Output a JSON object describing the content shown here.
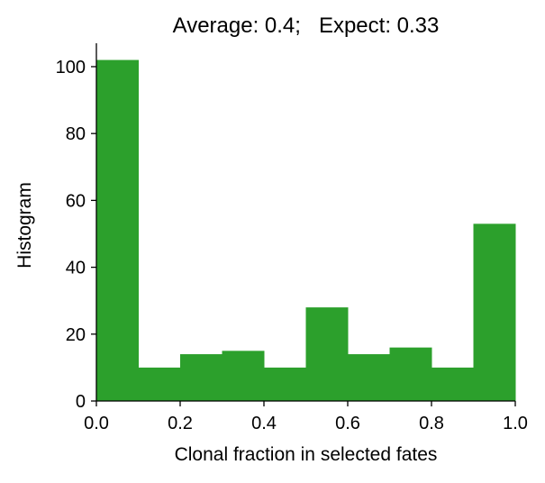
{
  "chart_data": {
    "type": "bar",
    "title": "Average: 0.4;   Expect: 0.33",
    "xlabel": "Clonal fraction in selected fates",
    "ylabel": "Histogram",
    "bin_edges": [
      0.0,
      0.1,
      0.2,
      0.3,
      0.4,
      0.5,
      0.6,
      0.7,
      0.8,
      0.9,
      1.0
    ],
    "values": [
      102,
      10,
      14,
      15,
      10,
      28,
      14,
      16,
      10,
      53
    ],
    "xlim": [
      0.0,
      1.0
    ],
    "ylim": [
      0,
      107
    ],
    "x_ticks": [
      "0.0",
      "0.2",
      "0.4",
      "0.6",
      "0.8",
      "1.0"
    ],
    "y_ticks": [
      "0",
      "20",
      "40",
      "60",
      "80",
      "100"
    ],
    "bar_color": "#2ca02c",
    "grid": false
  }
}
